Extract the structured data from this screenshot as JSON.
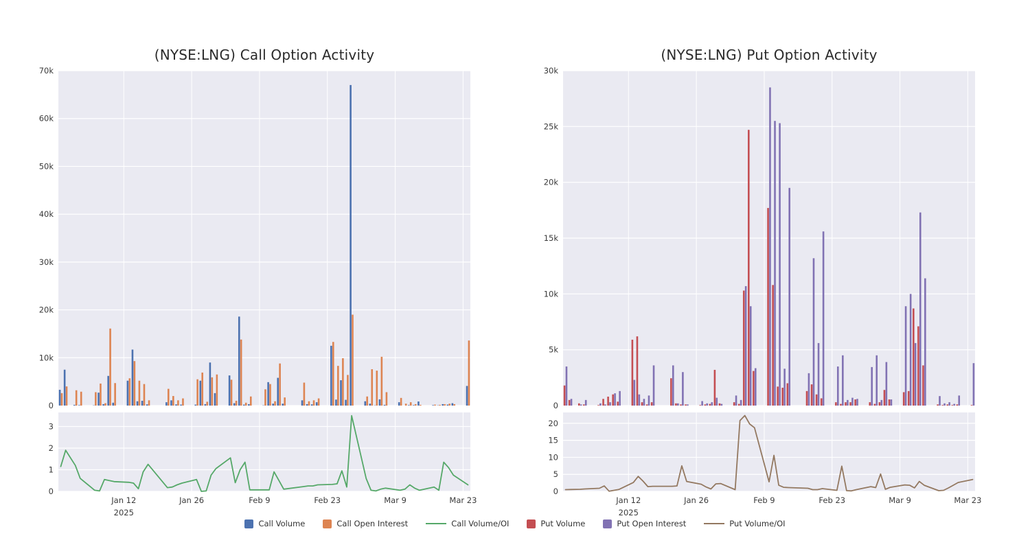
{
  "page": {
    "background": "#ffffff"
  },
  "colors": {
    "plot_background": "#EAEAF2",
    "grid": "#FFFFFF",
    "title_text": "#2a2a2a",
    "tick_text": "#3b3b3b",
    "call_volume": "#4C72B0",
    "call_open_interest": "#DD8452",
    "call_volume_oi": "#55A868",
    "put_volume": "#C44E52",
    "put_open_interest": "#8172B3",
    "put_volume_oi": "#937860"
  },
  "legend": {
    "items": [
      {
        "label": "Call Volume",
        "marker": "square",
        "color": "#4C72B0"
      },
      {
        "label": "Call Open Interest",
        "marker": "square",
        "color": "#DD8452"
      },
      {
        "label": "Call Volume/OI",
        "marker": "line",
        "color": "#55A868"
      },
      {
        "label": "Put Volume",
        "marker": "square",
        "color": "#C44E52"
      },
      {
        "label": "Put Open Interest",
        "marker": "square",
        "color": "#8172B3"
      },
      {
        "label": "Put Volume/OI",
        "marker": "line",
        "color": "#937860"
      }
    ]
  },
  "chart_data": [
    {
      "type": "bar",
      "title": "(NYSE:LNG) Call Option Activity",
      "xlabel": "",
      "ylabel": "",
      "ylim": [
        0,
        70000
      ],
      "yticks": [
        {
          "v": 0,
          "label": "0"
        },
        {
          "v": 10000,
          "label": "10k"
        },
        {
          "v": 20000,
          "label": "20k"
        },
        {
          "v": 30000,
          "label": "30k"
        },
        {
          "v": 40000,
          "label": "40k"
        },
        {
          "v": 50000,
          "label": "50k"
        },
        {
          "v": 60000,
          "label": "60k"
        },
        {
          "v": 70000,
          "label": "70k"
        }
      ],
      "xticks": [
        {
          "date": "2025-01-12",
          "label": "Jan 12",
          "sublabel": "2025"
        },
        {
          "date": "2025-01-26",
          "label": "Jan 26",
          "sublabel": ""
        },
        {
          "date": "2025-02-09",
          "label": "Feb 9",
          "sublabel": ""
        },
        {
          "date": "2025-02-23",
          "label": "Feb 23",
          "sublabel": ""
        },
        {
          "date": "2025-03-09",
          "label": "Mar 9",
          "sublabel": ""
        },
        {
          "date": "2025-03-23",
          "label": "Mar 23",
          "sublabel": ""
        }
      ],
      "grid": true,
      "legend_position": "bottom",
      "dates": [
        "2024-12-30",
        "2024-12-31",
        "2025-01-02",
        "2025-01-03",
        "2025-01-06",
        "2025-01-07",
        "2025-01-08",
        "2025-01-09",
        "2025-01-10",
        "2025-01-13",
        "2025-01-14",
        "2025-01-15",
        "2025-01-16",
        "2025-01-17",
        "2025-01-21",
        "2025-01-22",
        "2025-01-23",
        "2025-01-24",
        "2025-01-27",
        "2025-01-28",
        "2025-01-29",
        "2025-01-30",
        "2025-01-31",
        "2025-02-03",
        "2025-02-04",
        "2025-02-05",
        "2025-02-06",
        "2025-02-07",
        "2025-02-10",
        "2025-02-11",
        "2025-02-12",
        "2025-02-13",
        "2025-02-14",
        "2025-02-18",
        "2025-02-19",
        "2025-02-20",
        "2025-02-21",
        "2025-02-24",
        "2025-02-25",
        "2025-02-26",
        "2025-02-27",
        "2025-02-28",
        "2025-03-03",
        "2025-03-04",
        "2025-03-05",
        "2025-03-06",
        "2025-03-07",
        "2025-03-10",
        "2025-03-11",
        "2025-03-12",
        "2025-03-13",
        "2025-03-14",
        "2025-03-17",
        "2025-03-18",
        "2025-03-19",
        "2025-03-20",
        "2025-03-21",
        "2025-03-24"
      ],
      "series": [
        {
          "name": "Call Volume",
          "type": "bar",
          "color": "#4C72B0",
          "values": [
            3300,
            7500,
            150,
            100,
            50,
            2700,
            300,
            6200,
            600,
            5200,
            11700,
            900,
            1000,
            250,
            700,
            1100,
            250,
            200,
            200,
            5200,
            300,
            9000,
            2600,
            6300,
            500,
            18600,
            200,
            300,
            50,
            4900,
            400,
            5800,
            400,
            1100,
            300,
            250,
            700,
            12500,
            1250,
            5300,
            1200,
            67000,
            900,
            400,
            50,
            1300,
            150,
            700,
            0,
            100,
            100,
            850,
            100,
            50,
            300,
            200,
            500,
            4100
          ]
        },
        {
          "name": "Call Open Interest",
          "type": "bar",
          "color": "#DD8452",
          "values": [
            2600,
            4000,
            3200,
            2900,
            2800,
            4600,
            500,
            16100,
            4700,
            5700,
            9300,
            5200,
            4500,
            1100,
            3500,
            2000,
            1100,
            1500,
            5500,
            6900,
            800,
            5900,
            6500,
            5400,
            1000,
            13800,
            600,
            1900,
            3400,
            4500,
            900,
            8800,
            1700,
            4800,
            900,
            1100,
            1500,
            13300,
            8300,
            9900,
            6400,
            19000,
            1900,
            7600,
            7300,
            10200,
            2800,
            1600,
            400,
            700,
            300,
            150,
            200,
            150,
            300,
            400,
            300,
            13600
          ]
        }
      ],
      "subplot": {
        "name": "Call Volume/OI",
        "type": "line",
        "color": "#55A868",
        "ylim": [
          0,
          3.65
        ],
        "yticks": [
          {
            "v": 0,
            "label": "0"
          },
          {
            "v": 1,
            "label": "1"
          },
          {
            "v": 2,
            "label": "2"
          },
          {
            "v": 3,
            "label": "3"
          }
        ],
        "values": [
          1.15,
          1.9,
          1.2,
          0.6,
          0.05,
          0.02,
          0.55,
          0.5,
          0.45,
          0.42,
          0.38,
          0.12,
          0.9,
          1.25,
          0.17,
          0.2,
          0.3,
          0.38,
          0.55,
          0.0,
          0.02,
          0.75,
          1.05,
          1.55,
          0.4,
          1.0,
          1.35,
          0.07,
          0.07,
          0.07,
          0.9,
          0.5,
          0.1,
          0.22,
          0.25,
          0.25,
          0.3,
          0.32,
          0.35,
          0.95,
          0.2,
          3.5,
          0.6,
          0.05,
          0.02,
          0.1,
          0.15,
          0.05,
          0.1,
          0.3,
          0.15,
          0.05,
          0.2,
          0.05,
          1.35,
          1.1,
          0.75,
          0.3
        ]
      }
    },
    {
      "type": "bar",
      "title": "(NYSE:LNG) Put Option Activity",
      "xlabel": "",
      "ylabel": "",
      "ylim": [
        0,
        30000
      ],
      "yticks": [
        {
          "v": 0,
          "label": "0"
        },
        {
          "v": 5000,
          "label": "5k"
        },
        {
          "v": 10000,
          "label": "10k"
        },
        {
          "v": 15000,
          "label": "15k"
        },
        {
          "v": 20000,
          "label": "20k"
        },
        {
          "v": 25000,
          "label": "25k"
        },
        {
          "v": 30000,
          "label": "30k"
        }
      ],
      "xticks": [
        {
          "date": "2025-01-12",
          "label": "Jan 12",
          "sublabel": "2025"
        },
        {
          "date": "2025-01-26",
          "label": "Jan 26",
          "sublabel": ""
        },
        {
          "date": "2025-02-09",
          "label": "Feb 9",
          "sublabel": ""
        },
        {
          "date": "2025-02-23",
          "label": "Feb 23",
          "sublabel": ""
        },
        {
          "date": "2025-03-09",
          "label": "Mar 9",
          "sublabel": ""
        },
        {
          "date": "2025-03-23",
          "label": "Mar 23",
          "sublabel": ""
        }
      ],
      "grid": true,
      "legend_position": "bottom",
      "dates": [
        "2024-12-30",
        "2024-12-31",
        "2025-01-02",
        "2025-01-03",
        "2025-01-06",
        "2025-01-07",
        "2025-01-08",
        "2025-01-09",
        "2025-01-10",
        "2025-01-13",
        "2025-01-14",
        "2025-01-15",
        "2025-01-16",
        "2025-01-17",
        "2025-01-21",
        "2025-01-22",
        "2025-01-23",
        "2025-01-24",
        "2025-01-27",
        "2025-01-28",
        "2025-01-29",
        "2025-01-30",
        "2025-01-31",
        "2025-02-03",
        "2025-02-04",
        "2025-02-05",
        "2025-02-06",
        "2025-02-07",
        "2025-02-10",
        "2025-02-11",
        "2025-02-12",
        "2025-02-13",
        "2025-02-14",
        "2025-02-18",
        "2025-02-19",
        "2025-02-20",
        "2025-02-21",
        "2025-02-24",
        "2025-02-25",
        "2025-02-26",
        "2025-02-27",
        "2025-02-28",
        "2025-03-03",
        "2025-03-04",
        "2025-03-05",
        "2025-03-06",
        "2025-03-07",
        "2025-03-10",
        "2025-03-11",
        "2025-03-12",
        "2025-03-13",
        "2025-03-14",
        "2025-03-17",
        "2025-03-18",
        "2025-03-19",
        "2025-03-20",
        "2025-03-21",
        "2025-03-24"
      ],
      "series": [
        {
          "name": "Put Volume",
          "type": "bar",
          "color": "#C44E52",
          "values": [
            1800,
            500,
            200,
            100,
            50,
            600,
            800,
            1000,
            350,
            5900,
            6200,
            300,
            100,
            300,
            2450,
            200,
            100,
            100,
            50,
            100,
            150,
            3200,
            200,
            300,
            150,
            10300,
            24700,
            3100,
            17700,
            10800,
            1700,
            1600,
            2000,
            1300,
            1900,
            1000,
            650,
            300,
            150,
            300,
            300,
            550,
            300,
            150,
            300,
            1400,
            550,
            1200,
            1300,
            8700,
            7100,
            3600,
            100,
            50,
            100,
            50,
            100,
            50
          ]
        },
        {
          "name": "Put Open Interest",
          "type": "bar",
          "color": "#8172B3",
          "values": [
            3500,
            600,
            100,
            500,
            200,
            100,
            300,
            1100,
            1300,
            2300,
            1000,
            600,
            900,
            3600,
            3600,
            200,
            3000,
            100,
            400,
            200,
            300,
            700,
            150,
            900,
            500,
            10700,
            8900,
            3350,
            28500,
            25500,
            25300,
            3300,
            19500,
            2900,
            13200,
            5600,
            15600,
            3500,
            4500,
            500,
            700,
            600,
            3450,
            4500,
            500,
            3900,
            550,
            8900,
            10000,
            5600,
            17300,
            11400,
            850,
            200,
            300,
            150,
            900,
            3800
          ]
        }
      ],
      "subplot": {
        "name": "Put Volume/OI",
        "type": "line",
        "color": "#937860",
        "ylim": [
          0,
          23.2
        ],
        "yticks": [
          {
            "v": 0,
            "label": "0"
          },
          {
            "v": 5,
            "label": "5"
          },
          {
            "v": 10,
            "label": "10"
          },
          {
            "v": 15,
            "label": "15"
          },
          {
            "v": 20,
            "label": "20"
          }
        ],
        "values": [
          0.5,
          0.55,
          0.6,
          0.7,
          0.9,
          1.6,
          0.05,
          0.3,
          0.55,
          2.6,
          4.4,
          3.0,
          1.4,
          1.5,
          1.5,
          1.6,
          7.5,
          2.9,
          2.1,
          1.3,
          0.7,
          2.2,
          2.3,
          0.5,
          20.8,
          22.3,
          19.8,
          18.7,
          2.8,
          10.6,
          1.8,
          1.2,
          1.1,
          0.9,
          0.5,
          0.5,
          0.8,
          0.3,
          7.4,
          0.2,
          0.15,
          0.5,
          1.4,
          1.1,
          5.1,
          0.6,
          1.2,
          1.9,
          1.8,
          1.0,
          2.9,
          1.8,
          0.2,
          0.3,
          1.0,
          1.8,
          2.6,
          3.5
        ]
      }
    }
  ]
}
